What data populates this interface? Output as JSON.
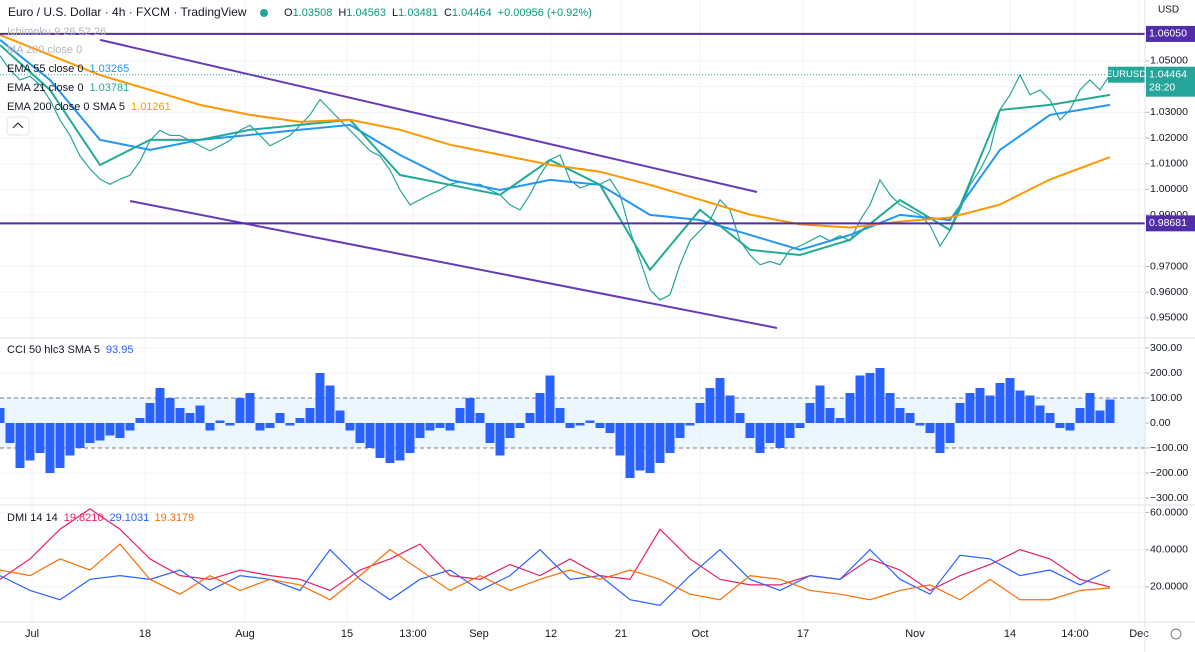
{
  "header": {
    "title": "Euro / U.S. Dollar · 4h · FXCM · TradingView",
    "ohlc": [
      [
        "O",
        "1.03508"
      ],
      [
        "H",
        "1.04563"
      ],
      [
        "L",
        "1.03481"
      ],
      [
        "C",
        "1.04464"
      ]
    ],
    "change": "+0.00956 (+0.92%)"
  },
  "currency": "USD",
  "chart_data": [
    {
      "type": "line",
      "xlim": [
        0,
        114.5
      ],
      "xticks": [
        {
          "value": 3.2,
          "label": "Jul"
        },
        {
          "value": 14.5,
          "label": "18"
        },
        {
          "value": 24.5,
          "label": "Aug"
        },
        {
          "value": 34.7,
          "label": "15"
        },
        {
          "value": 41.3,
          "label": "13:00"
        },
        {
          "value": 47.9,
          "label": "Sep"
        },
        {
          "value": 55.1,
          "label": "12"
        },
        {
          "value": 62.1,
          "label": "21"
        },
        {
          "value": 70,
          "label": "Oct"
        },
        {
          "value": 80.3,
          "label": "17"
        },
        {
          "value": 91.5,
          "label": "Nov"
        },
        {
          "value": 101,
          "label": "14"
        },
        {
          "value": 107.5,
          "label": "14:00"
        },
        {
          "value": 113.9,
          "label": "Dec"
        }
      ],
      "ylim": [
        0.9422,
        1.0737
      ],
      "yticks": [
        {
          "value": 1.05,
          "label": "1.05000"
        },
        {
          "value": 1.04,
          "label": "1.04000"
        },
        {
          "value": 1.03,
          "label": "1.03000"
        },
        {
          "value": 1.02,
          "label": "1.02000"
        },
        {
          "value": 1.01,
          "label": "1.01000"
        },
        {
          "value": 1.0,
          "label": "1.00000"
        },
        {
          "value": 0.99,
          "label": "0.99000"
        },
        {
          "value": 0.97,
          "label": "0.97000"
        },
        {
          "value": 0.96,
          "label": "0.96000"
        },
        {
          "value": 0.95,
          "label": "0.95000"
        }
      ],
      "grid": true,
      "hidden_indicators": [
        "Ichimoku 9 26 52 26",
        "MA 200 close 0"
      ],
      "x": [
        0,
        1,
        2,
        3,
        4,
        5,
        6,
        7,
        8,
        9,
        10,
        11,
        12,
        13,
        14,
        15,
        16,
        17,
        18,
        19,
        20,
        21,
        22,
        23,
        24,
        25,
        26,
        27,
        28,
        29,
        30,
        31,
        32,
        33,
        34,
        35,
        36,
        37,
        38,
        39,
        40,
        41,
        42,
        43,
        44,
        45,
        46,
        47,
        48,
        49,
        50,
        51,
        52,
        53,
        54,
        55,
        56,
        57,
        58,
        59,
        60,
        61,
        62,
        63,
        64,
        65,
        66,
        67,
        68,
        69,
        70,
        71,
        72,
        73,
        74,
        75,
        76,
        77,
        78,
        79,
        80,
        81,
        82,
        83,
        84,
        85,
        86,
        87,
        88,
        89,
        90,
        91,
        92,
        93,
        94,
        95,
        96,
        97,
        98,
        99,
        100,
        101,
        102,
        103,
        104,
        105,
        106,
        107,
        108,
        109,
        110,
        111
      ],
      "series": [
        {
          "color": "#26a69a",
          "values": [
            1.052,
            1.0465,
            1.0426,
            1.044,
            1.0407,
            1.0348,
            1.027,
            1.021,
            1.013,
            1.008,
            1.004,
            1.002,
            1.004,
            1.0055,
            1.011,
            1.019,
            1.023,
            1.021,
            1.021,
            1.019,
            1.017,
            1.015,
            1.017,
            1.019,
            1.023,
            1.025,
            1.021,
            1.017,
            1.019,
            1.021,
            1.025,
            1.029,
            1.035,
            1.031,
            1.027,
            1.023,
            1.019,
            1.015,
            1.013,
            1.0075,
            0.9998,
            0.994,
            0.996,
            0.998,
            0.9998,
            1.002,
            1.003,
            1.002,
            1.002,
            0.9998,
            0.998,
            0.994,
            0.992,
            0.998,
            1.0056,
            1.0115,
            1.0134,
            1.0037,
            1.0006,
            1.002,
            1.002,
            1.004,
            0.998,
            0.984,
            0.9726,
            0.961,
            0.957,
            0.959,
            0.9707,
            0.98,
            0.984,
            0.988,
            0.996,
            0.992,
            0.98,
            0.9745,
            0.9707,
            0.972,
            0.9707,
            0.9765,
            0.978,
            0.98,
            0.982,
            0.98,
            0.982,
            0.98,
            0.988,
            0.994,
            1.0037,
            0.998,
            0.994,
            0.992,
            0.99,
            0.986,
            0.978,
            0.984,
            0.992,
            1.0017,
            1.0076,
            1.0153,
            1.031,
            1.0368,
            1.0446,
            1.0368,
            1.0387,
            1.0348,
            1.027,
            1.031,
            1.0387,
            1.0426,
            1.0387,
            1.04464
          ]
        },
        {
          "name": "EMA 55 close 0",
          "value_label": "1.03265",
          "color": "#2196f3",
          "x": [
            0,
            5,
            10,
            15,
            20,
            25,
            30,
            35,
            40,
            45,
            50,
            55,
            60,
            65,
            70,
            75,
            80,
            85,
            90,
            95,
            100,
            105,
            111
          ],
          "values": [
            1.0582,
            1.0426,
            1.0193,
            1.0154,
            1.0193,
            1.0212,
            1.0232,
            1.0251,
            1.0134,
            1.0037,
            0.9998,
            1.0037,
            1.0018,
            0.9901,
            0.9881,
            0.9823,
            0.9765,
            0.9823,
            0.9901,
            0.9881,
            1.0154,
            1.029,
            1.0329
          ]
        },
        {
          "name": "EMA 21 close 0",
          "value_label": "1.03781",
          "color": "#22ab94",
          "x": [
            0,
            5,
            10,
            15,
            20,
            25,
            30,
            35,
            40,
            45,
            50,
            55,
            60,
            65,
            70,
            75,
            80,
            85,
            90,
            95,
            100,
            105,
            111
          ],
          "values": [
            1.0562,
            1.0387,
            1.0095,
            1.0193,
            1.0193,
            1.0232,
            1.0251,
            1.0271,
            1.0056,
            1.0018,
            0.9979,
            1.0115,
            1.0018,
            0.9687,
            0.9921,
            0.9765,
            0.9745,
            0.9804,
            0.9959,
            0.9842,
            1.0309,
            1.0329,
            1.0368
          ]
        },
        {
          "name": "EMA 200 close 0 SMA 5",
          "value_label": "1.01261",
          "color": "#ff9800",
          "x": [
            0,
            5,
            10,
            15,
            20,
            25,
            30,
            35,
            40,
            45,
            50,
            55,
            60,
            65,
            70,
            75,
            80,
            85,
            90,
            95,
            100,
            105,
            111
          ],
          "values": [
            1.0601,
            1.0523,
            1.0445,
            1.0387,
            1.0329,
            1.029,
            1.0263,
            1.0271,
            1.0232,
            1.0174,
            1.0135,
            1.0096,
            1.0069,
            1.0018,
            0.996,
            0.9902,
            0.9864,
            0.9852,
            0.9875,
            0.9891,
            0.9941,
            1.0039,
            1.0126
          ]
        }
      ],
      "hlines": [
        {
          "value": 1.0605,
          "label": "1.06050",
          "color": "#512da8"
        },
        {
          "value": 0.98681,
          "label": "0.98681",
          "color": "#512da8"
        }
      ],
      "trendlines": [
        {
          "color": "#673ab7",
          "x": [
            10,
            75.7
          ],
          "y": [
            1.0582,
            0.999
          ]
        },
        {
          "color": "#673ab7",
          "x": [
            13,
            77.7
          ],
          "y": [
            0.9955,
            0.9461
          ]
        }
      ],
      "price_tag": {
        "symbol": "EURUSD",
        "value": 1.04464,
        "label": "1.04464",
        "countdown": "28:20",
        "color": "#26a69a"
      }
    },
    {
      "type": "bar",
      "name": "CCI 50 hlc3 SMA 5",
      "value_label": "93.95",
      "color": "#2962ff",
      "ylim": [
        -328,
        332
      ],
      "yticks": [
        {
          "value": 300,
          "label": "300.00"
        },
        {
          "value": 200,
          "label": "200.00"
        },
        {
          "value": 100,
          "label": "100.00"
        },
        {
          "value": 0,
          "label": "0.00"
        },
        {
          "value": -100,
          "label": "−100.00"
        },
        {
          "value": -200,
          "label": "−200.00"
        },
        {
          "value": -300,
          "label": "−300.00"
        }
      ],
      "grid": true,
      "bands": [
        -100,
        100
      ],
      "x": [
        0,
        1,
        2,
        3,
        4,
        5,
        6,
        7,
        8,
        9,
        10,
        11,
        12,
        13,
        14,
        15,
        16,
        17,
        18,
        19,
        20,
        21,
        22,
        23,
        24,
        25,
        26,
        27,
        28,
        29,
        30,
        31,
        32,
        33,
        34,
        35,
        36,
        37,
        38,
        39,
        40,
        41,
        42,
        43,
        44,
        45,
        46,
        47,
        48,
        49,
        50,
        51,
        52,
        53,
        54,
        55,
        56,
        57,
        58,
        59,
        60,
        61,
        62,
        63,
        64,
        65,
        66,
        67,
        68,
        69,
        70,
        71,
        72,
        73,
        74,
        75,
        76,
        77,
        78,
        79,
        80,
        81,
        82,
        83,
        84,
        85,
        86,
        87,
        88,
        89,
        90,
        91,
        92,
        93,
        94,
        95,
        96,
        97,
        98,
        99,
        100,
        101,
        102,
        103,
        104,
        105,
        106,
        107,
        108,
        109,
        110,
        111
      ],
      "values": [
        60,
        -80,
        -180,
        -150,
        -120,
        -200,
        -180,
        -130,
        -100,
        -80,
        -70,
        -50,
        -60,
        -30,
        20,
        80,
        140,
        100,
        60,
        40,
        70,
        -30,
        10,
        -10,
        100,
        120,
        -30,
        -20,
        40,
        -10,
        20,
        60,
        200,
        150,
        50,
        -30,
        -80,
        -100,
        -140,
        -160,
        -150,
        -120,
        -60,
        -30,
        -20,
        -30,
        60,
        100,
        40,
        -80,
        -130,
        -60,
        -20,
        40,
        120,
        190,
        60,
        -20,
        -10,
        10,
        -20,
        -40,
        -130,
        -220,
        -190,
        -200,
        -160,
        -120,
        -60,
        -10,
        80,
        140,
        180,
        110,
        40,
        -60,
        -120,
        -80,
        -100,
        -60,
        -20,
        80,
        150,
        60,
        20,
        120,
        190,
        200,
        220,
        120,
        60,
        40,
        -10,
        -40,
        -120,
        -80,
        80,
        120,
        140,
        110,
        160,
        180,
        130,
        110,
        70,
        40,
        -20,
        -30,
        60,
        120,
        50,
        93.95
      ]
    },
    {
      "type": "line",
      "name": "DMI 14 14",
      "ylim": [
        1,
        63
      ],
      "yticks": [
        {
          "value": 60,
          "label": "60.0000"
        },
        {
          "value": 40,
          "label": "40.0000"
        },
        {
          "value": 20,
          "label": "20.0000"
        }
      ],
      "grid": true,
      "x": [
        0,
        3,
        6,
        9,
        12,
        15,
        18,
        21,
        24,
        27,
        30,
        33,
        36,
        39,
        42,
        45,
        48,
        51,
        54,
        57,
        60,
        63,
        66,
        69,
        72,
        75,
        78,
        81,
        84,
        87,
        90,
        93,
        96,
        99,
        102,
        105,
        108,
        111
      ],
      "series": [
        {
          "value_label": "19.8210",
          "color": "#e91e63",
          "values": [
            24,
            35,
            51,
            62,
            51,
            35,
            26,
            24,
            29,
            26,
            24,
            18,
            29,
            35,
            43,
            26,
            24,
            32,
            26,
            35,
            26,
            24,
            51,
            35,
            24,
            21,
            21,
            26,
            24,
            35,
            29,
            18,
            26,
            32,
            40,
            35,
            24,
            19.821
          ]
        },
        {
          "value_label": "29.1031",
          "color": "#2962ff",
          "values": [
            26,
            18,
            13,
            24,
            26,
            24,
            29,
            18,
            26,
            24,
            18,
            40,
            24,
            13,
            24,
            29,
            18,
            26,
            40,
            24,
            26,
            13,
            10,
            26,
            40,
            24,
            18,
            26,
            24,
            40,
            24,
            16,
            37,
            35,
            26,
            29,
            21,
            29.1031
          ]
        },
        {
          "value_label": "19.3179",
          "color": "#ff6d00",
          "values": [
            29,
            26,
            35,
            29,
            43,
            24,
            16,
            26,
            18,
            24,
            21,
            13,
            26,
            40,
            29,
            18,
            26,
            18,
            24,
            29,
            24,
            29,
            24,
            16,
            13,
            26,
            24,
            18,
            16,
            13,
            18,
            21,
            13,
            24,
            13,
            13,
            18,
            19.3179
          ]
        }
      ]
    }
  ]
}
